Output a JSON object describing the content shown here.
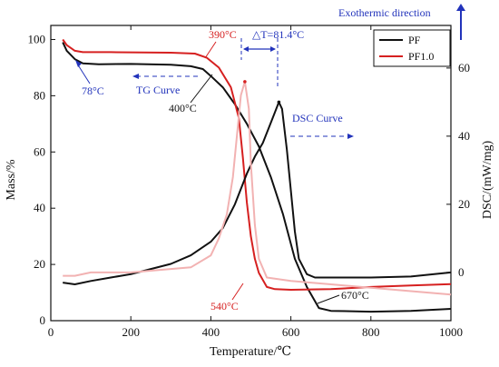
{
  "chart_data": {
    "type": "line",
    "xlabel": "Temperature/℃",
    "ylabel_left": "Mass/%",
    "ylabel_right": "DSC/(mW/mg)",
    "xlim": [
      0,
      1000
    ],
    "ylim_left": [
      0,
      105
    ],
    "ylim_right": [
      -14.16,
      72.5
    ],
    "x_ticks": [
      "0",
      "200",
      "400",
      "600",
      "800",
      "1000"
    ],
    "y_left_ticks": [
      "0",
      "20",
      "40",
      "60",
      "80",
      "100"
    ],
    "y_right_ticks": [
      "0",
      "20",
      "40",
      "60"
    ],
    "legend": [
      "PF",
      "PF1.0"
    ],
    "legend_position": "top-right",
    "colors": {
      "PF": "#111111",
      "PF1.0": "#d62020",
      "PF1.0_dsc": "#f2b2b2",
      "annotation": "#2233bb"
    },
    "series": [
      {
        "name": "PF",
        "kind": "TG",
        "axis": "left",
        "points": [
          [
            30,
            99
          ],
          [
            40,
            96
          ],
          [
            60,
            93
          ],
          [
            80,
            91.5
          ],
          [
            120,
            91.2
          ],
          [
            200,
            91.3
          ],
          [
            300,
            91
          ],
          [
            350,
            90.5
          ],
          [
            380,
            89.5
          ],
          [
            400,
            87
          ],
          [
            430,
            83
          ],
          [
            460,
            77
          ],
          [
            490,
            70
          ],
          [
            520,
            62
          ],
          [
            550,
            51
          ],
          [
            580,
            38
          ],
          [
            610,
            22
          ],
          [
            640,
            12
          ],
          [
            670,
            4.5
          ],
          [
            700,
            3.5
          ],
          [
            800,
            3.2
          ],
          [
            900,
            3.5
          ],
          [
            1000,
            4.2
          ]
        ]
      },
      {
        "name": "PF1.0",
        "kind": "TG",
        "axis": "left",
        "points": [
          [
            30,
            100
          ],
          [
            40,
            98
          ],
          [
            60,
            96
          ],
          [
            80,
            95.5
          ],
          [
            150,
            95.5
          ],
          [
            300,
            95.3
          ],
          [
            360,
            95
          ],
          [
            390,
            93.5
          ],
          [
            420,
            90
          ],
          [
            450,
            83
          ],
          [
            470,
            72
          ],
          [
            480,
            58
          ],
          [
            490,
            42
          ],
          [
            500,
            30
          ],
          [
            510,
            22
          ],
          [
            520,
            17
          ],
          [
            540,
            12
          ],
          [
            560,
            11.2
          ],
          [
            600,
            11
          ],
          [
            700,
            11.2
          ],
          [
            800,
            12
          ],
          [
            900,
            12.5
          ],
          [
            1000,
            13
          ]
        ]
      },
      {
        "name": "PF",
        "kind": "DSC",
        "axis": "right",
        "points": [
          [
            30,
            -3
          ],
          [
            60,
            -3.5
          ],
          [
            100,
            -2.5
          ],
          [
            150,
            -1.5
          ],
          [
            200,
            -0.5
          ],
          [
            250,
            1
          ],
          [
            300,
            2.5
          ],
          [
            350,
            5
          ],
          [
            400,
            9
          ],
          [
            430,
            13
          ],
          [
            460,
            20
          ],
          [
            490,
            29
          ],
          [
            510,
            34
          ],
          [
            530,
            38
          ],
          [
            550,
            44
          ],
          [
            570,
            50
          ],
          [
            578,
            48
          ],
          [
            590,
            36
          ],
          [
            600,
            24
          ],
          [
            610,
            12
          ],
          [
            620,
            4
          ],
          [
            640,
            -0.5
          ],
          [
            660,
            -1.5
          ],
          [
            700,
            -1.5
          ],
          [
            800,
            -1.5
          ],
          [
            900,
            -1.2
          ],
          [
            1000,
            0
          ]
        ]
      },
      {
        "name": "PF1.0",
        "kind": "DSC",
        "axis": "right",
        "points": [
          [
            30,
            -1
          ],
          [
            60,
            -1
          ],
          [
            100,
            0
          ],
          [
            200,
            0
          ],
          [
            300,
            1
          ],
          [
            350,
            1.5
          ],
          [
            400,
            5
          ],
          [
            420,
            10
          ],
          [
            440,
            17
          ],
          [
            455,
            28
          ],
          [
            465,
            40
          ],
          [
            475,
            52
          ],
          [
            485,
            56
          ],
          [
            495,
            48
          ],
          [
            500,
            32
          ],
          [
            510,
            14
          ],
          [
            520,
            4
          ],
          [
            540,
            -1.5
          ],
          [
            600,
            -2.5
          ],
          [
            700,
            -3.5
          ],
          [
            800,
            -4.5
          ],
          [
            900,
            -5.5
          ],
          [
            1000,
            -6.5
          ]
        ]
      }
    ]
  },
  "annotations": {
    "delta_t": "△T=81.4°C",
    "t390": "390°C",
    "t78": "78°C",
    "t400": "400°C",
    "t540": "540°C",
    "t670": "670°C",
    "tg_curve": "TG Curve",
    "dsc_curve": "DSC Curve",
    "exothermic": "Exothermic direction"
  }
}
